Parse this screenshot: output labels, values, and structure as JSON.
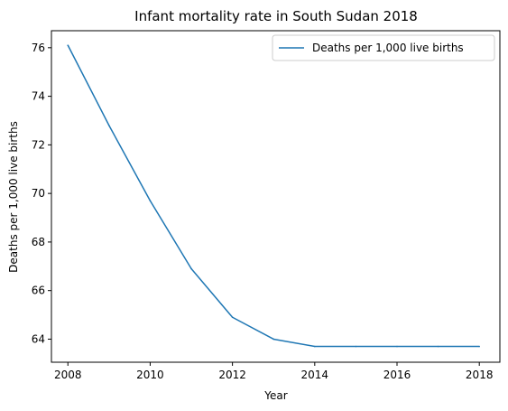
{
  "chart_data": {
    "type": "line",
    "title": "Infant mortality rate in South Sudan 2018",
    "xlabel": "Year",
    "ylabel": "Deaths per 1,000 live births",
    "xlim": [
      2007.6,
      2018.5
    ],
    "ylim": [
      63.05,
      76.7
    ],
    "x_ticks": [
      "2008",
      "2010",
      "2012",
      "2014",
      "2016",
      "2018"
    ],
    "y_ticks": [
      "64",
      "66",
      "68",
      "70",
      "72",
      "74",
      "76"
    ],
    "legend_position": "top-right",
    "grid": false,
    "series": [
      {
        "name": "Deaths per 1,000 live births",
        "color": "#1f77b4",
        "x": [
          2008,
          2009,
          2010,
          2011,
          2012,
          2013,
          2014,
          2015,
          2016,
          2017,
          2018
        ],
        "y": [
          76.1,
          72.8,
          69.7,
          66.9,
          64.9,
          64.0,
          63.7,
          63.7,
          63.7,
          63.7,
          63.7
        ]
      }
    ]
  }
}
